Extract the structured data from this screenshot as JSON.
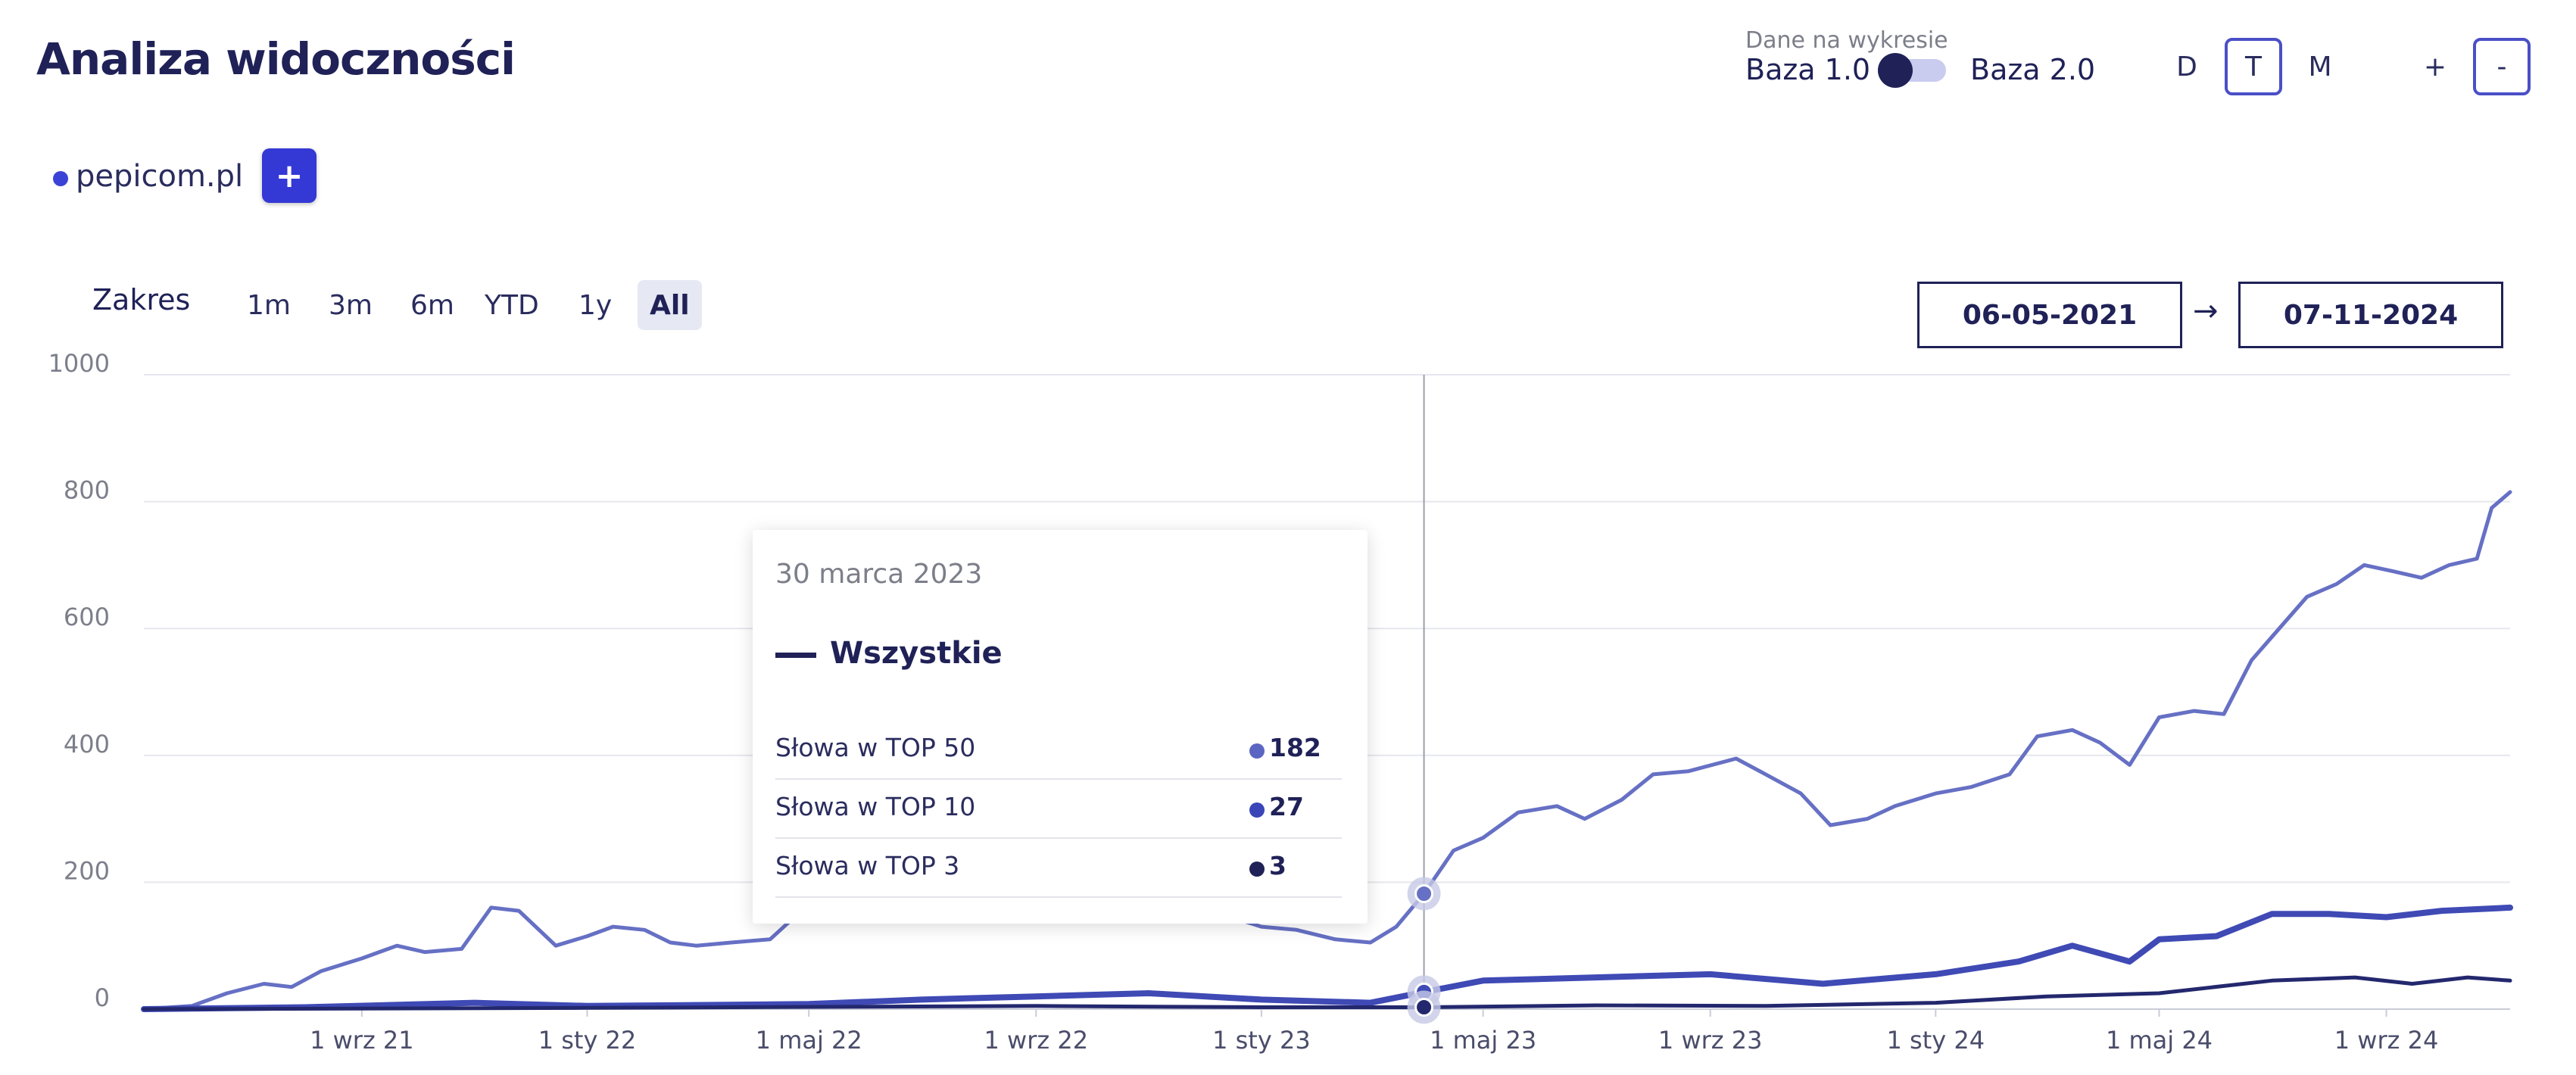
{
  "header": {
    "title": "Analiza widoczności",
    "toggle_caption": "Dane na wykresie",
    "base_left": "Baza 1.0",
    "base_right": "Baza 2.0",
    "periods": [
      "D",
      "T",
      "M"
    ],
    "active_period": "T",
    "zoom_in": "+",
    "zoom_out": "-"
  },
  "domain": {
    "label": "pepicom.pl",
    "add_label": "+"
  },
  "range": {
    "label": "Zakres",
    "options": [
      "1m",
      "3m",
      "6m",
      "YTD",
      "1y",
      "All"
    ],
    "active": "All",
    "date_from": "06-05-2021",
    "date_to": "07-11-2024",
    "arrow": "→"
  },
  "tooltip": {
    "date": "30 marca 2023",
    "series_name": "Wszystkie",
    "rows": [
      {
        "label": "Słowa w TOP 50",
        "value": "182",
        "color": "#5b66c2"
      },
      {
        "label": "Słowa w TOP 10",
        "value": "27",
        "color": "#3a45b8"
      },
      {
        "label": "Słowa w TOP 3",
        "value": "3",
        "color": "#1f2157"
      }
    ]
  },
  "colors": {
    "top50": "#6670c4",
    "top10": "#3f4ab5",
    "top3": "#23286e",
    "grid": "#e6e7ee",
    "crosshair": "#9c9eaa"
  },
  "chart_data": {
    "type": "line",
    "ylim": [
      0,
      1000
    ],
    "yticks": [
      0,
      200,
      400,
      600,
      800,
      1000
    ],
    "xlim": [
      "2021-05-06",
      "2024-11-07"
    ],
    "xticks": [
      {
        "date": "2021-09-01",
        "label": "1 wrz 21"
      },
      {
        "date": "2022-01-01",
        "label": "1 sty 22"
      },
      {
        "date": "2022-05-01",
        "label": "1 maj 22"
      },
      {
        "date": "2022-09-01",
        "label": "1 wrz 22"
      },
      {
        "date": "2023-01-01",
        "label": "1 sty 23"
      },
      {
        "date": "2023-05-01",
        "label": "1 maj 23"
      },
      {
        "date": "2023-09-01",
        "label": "1 wrz 23"
      },
      {
        "date": "2024-01-01",
        "label": "1 sty 24"
      },
      {
        "date": "2024-05-01",
        "label": "1 maj 24"
      },
      {
        "date": "2024-09-01",
        "label": "1 wrz 24"
      }
    ],
    "highlight_date": "2023-03-30",
    "series": [
      {
        "name": "Słowa w TOP 50",
        "points": [
          [
            "2021-05-06",
            0
          ],
          [
            "2021-06-01",
            5
          ],
          [
            "2021-06-20",
            25
          ],
          [
            "2021-07-10",
            40
          ],
          [
            "2021-07-25",
            35
          ],
          [
            "2021-08-10",
            60
          ],
          [
            "2021-09-01",
            80
          ],
          [
            "2021-09-20",
            100
          ],
          [
            "2021-10-05",
            90
          ],
          [
            "2021-10-25",
            95
          ],
          [
            "2021-11-10",
            160
          ],
          [
            "2021-11-25",
            155
          ],
          [
            "2021-12-15",
            100
          ],
          [
            "2022-01-01",
            115
          ],
          [
            "2022-01-15",
            130
          ],
          [
            "2022-02-01",
            125
          ],
          [
            "2022-02-15",
            105
          ],
          [
            "2022-03-01",
            100
          ],
          [
            "2022-03-20",
            105
          ],
          [
            "2022-04-10",
            110
          ],
          [
            "2022-04-25",
            150
          ],
          [
            "2022-05-10",
            170
          ],
          [
            "2022-06-01",
            170
          ],
          [
            "2022-06-20",
            165
          ],
          [
            "2022-07-10",
            190
          ],
          [
            "2022-08-01",
            200
          ],
          [
            "2022-08-20",
            205
          ],
          [
            "2022-09-10",
            215
          ],
          [
            "2022-10-01",
            230
          ],
          [
            "2022-10-15",
            245
          ],
          [
            "2022-11-01",
            220
          ],
          [
            "2022-11-20",
            190
          ],
          [
            "2022-12-10",
            150
          ],
          [
            "2023-01-01",
            130
          ],
          [
            "2023-01-20",
            125
          ],
          [
            "2023-02-10",
            110
          ],
          [
            "2023-03-01",
            105
          ],
          [
            "2023-03-15",
            130
          ],
          [
            "2023-03-30",
            182
          ],
          [
            "2023-04-15",
            250
          ],
          [
            "2023-05-01",
            270
          ],
          [
            "2023-05-20",
            310
          ],
          [
            "2023-06-10",
            320
          ],
          [
            "2023-06-25",
            300
          ],
          [
            "2023-07-15",
            330
          ],
          [
            "2023-08-01",
            370
          ],
          [
            "2023-08-20",
            375
          ],
          [
            "2023-09-15",
            395
          ],
          [
            "2023-10-01",
            370
          ],
          [
            "2023-10-20",
            340
          ],
          [
            "2023-11-05",
            290
          ],
          [
            "2023-11-25",
            300
          ],
          [
            "2023-12-10",
            320
          ],
          [
            "2024-01-01",
            340
          ],
          [
            "2024-01-20",
            350
          ],
          [
            "2024-02-10",
            370
          ],
          [
            "2024-02-25",
            430
          ],
          [
            "2024-03-15",
            440
          ],
          [
            "2024-03-30",
            420
          ],
          [
            "2024-04-15",
            385
          ],
          [
            "2024-05-01",
            460
          ],
          [
            "2024-05-20",
            470
          ],
          [
            "2024-06-05",
            465
          ],
          [
            "2024-06-20",
            550
          ],
          [
            "2024-07-05",
            600
          ],
          [
            "2024-07-20",
            650
          ],
          [
            "2024-08-05",
            670
          ],
          [
            "2024-08-20",
            700
          ],
          [
            "2024-09-05",
            690
          ],
          [
            "2024-09-20",
            680
          ],
          [
            "2024-10-05",
            700
          ],
          [
            "2024-10-20",
            710
          ],
          [
            "2024-10-28",
            790
          ],
          [
            "2024-11-07",
            815
          ]
        ]
      },
      {
        "name": "Słowa w TOP 10",
        "points": [
          [
            "2021-05-06",
            0
          ],
          [
            "2021-08-01",
            3
          ],
          [
            "2021-11-01",
            10
          ],
          [
            "2022-01-01",
            5
          ],
          [
            "2022-05-01",
            8
          ],
          [
            "2022-07-01",
            15
          ],
          [
            "2022-09-01",
            20
          ],
          [
            "2022-11-01",
            25
          ],
          [
            "2023-01-01",
            15
          ],
          [
            "2023-03-01",
            10
          ],
          [
            "2023-03-30",
            27
          ],
          [
            "2023-05-01",
            45
          ],
          [
            "2023-07-01",
            50
          ],
          [
            "2023-09-01",
            55
          ],
          [
            "2023-11-01",
            40
          ],
          [
            "2024-01-01",
            55
          ],
          [
            "2024-02-15",
            75
          ],
          [
            "2024-03-15",
            100
          ],
          [
            "2024-04-15",
            75
          ],
          [
            "2024-05-01",
            110
          ],
          [
            "2024-06-01",
            115
          ],
          [
            "2024-07-01",
            150
          ],
          [
            "2024-08-01",
            150
          ],
          [
            "2024-09-01",
            145
          ],
          [
            "2024-10-01",
            155
          ],
          [
            "2024-11-07",
            160
          ]
        ]
      },
      {
        "name": "Słowa w TOP 3",
        "points": [
          [
            "2021-05-06",
            0
          ],
          [
            "2022-01-01",
            2
          ],
          [
            "2022-09-01",
            5
          ],
          [
            "2023-01-01",
            3
          ],
          [
            "2023-03-30",
            3
          ],
          [
            "2023-07-01",
            6
          ],
          [
            "2023-10-01",
            5
          ],
          [
            "2024-01-01",
            10
          ],
          [
            "2024-03-01",
            20
          ],
          [
            "2024-05-01",
            25
          ],
          [
            "2024-07-01",
            45
          ],
          [
            "2024-08-15",
            50
          ],
          [
            "2024-09-15",
            40
          ],
          [
            "2024-10-15",
            50
          ],
          [
            "2024-11-07",
            45
          ]
        ]
      }
    ]
  }
}
